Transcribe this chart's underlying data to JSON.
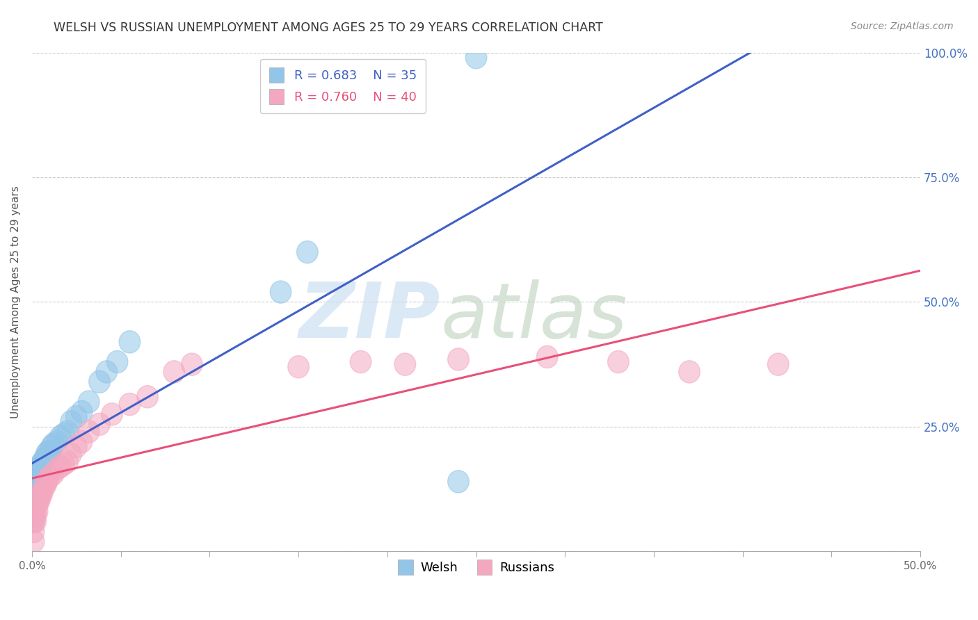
{
  "title": "WELSH VS RUSSIAN UNEMPLOYMENT AMONG AGES 25 TO 29 YEARS CORRELATION CHART",
  "source": "Source: ZipAtlas.com",
  "ylabel": "Unemployment Among Ages 25 to 29 years",
  "xlim": [
    0,
    0.5
  ],
  "ylim": [
    0,
    1.0
  ],
  "xticks": [
    0.0,
    0.05,
    0.1,
    0.15,
    0.2,
    0.25,
    0.3,
    0.35,
    0.4,
    0.45,
    0.5
  ],
  "xticklabels_show": [
    "0.0%",
    "",
    "",
    "",
    "",
    "",
    "",
    "",
    "",
    "",
    "50.0%"
  ],
  "yticks": [
    0.0,
    0.25,
    0.5,
    0.75,
    1.0
  ],
  "yticklabels_right": [
    "",
    "25.0%",
    "50.0%",
    "75.0%",
    "100.0%"
  ],
  "welsh_R": 0.683,
  "welsh_N": 35,
  "russian_R": 0.76,
  "russian_N": 40,
  "welsh_color": "#92C5E8",
  "russian_color": "#F4A8C0",
  "welsh_line_color": "#4060C8",
  "russian_line_color": "#E8507A",
  "welsh_x": [
    0.001,
    0.001,
    0.002,
    0.002,
    0.002,
    0.003,
    0.003,
    0.003,
    0.004,
    0.004,
    0.005,
    0.005,
    0.006,
    0.007,
    0.008,
    0.009,
    0.01,
    0.011,
    0.012,
    0.014,
    0.016,
    0.018,
    0.02,
    0.022,
    0.025,
    0.028,
    0.032,
    0.038,
    0.042,
    0.048,
    0.055,
    0.14,
    0.155,
    0.24,
    0.25
  ],
  "welsh_y": [
    0.06,
    0.08,
    0.09,
    0.1,
    0.12,
    0.13,
    0.14,
    0.15,
    0.155,
    0.165,
    0.17,
    0.175,
    0.18,
    0.185,
    0.195,
    0.2,
    0.2,
    0.21,
    0.215,
    0.22,
    0.23,
    0.235,
    0.24,
    0.26,
    0.27,
    0.28,
    0.3,
    0.34,
    0.36,
    0.38,
    0.42,
    0.52,
    0.6,
    0.14,
    0.99
  ],
  "russian_x": [
    0.001,
    0.001,
    0.001,
    0.002,
    0.002,
    0.002,
    0.003,
    0.003,
    0.004,
    0.004,
    0.005,
    0.005,
    0.006,
    0.007,
    0.008,
    0.009,
    0.01,
    0.012,
    0.014,
    0.016,
    0.018,
    0.02,
    0.022,
    0.025,
    0.028,
    0.032,
    0.038,
    0.045,
    0.055,
    0.065,
    0.08,
    0.09,
    0.15,
    0.185,
    0.21,
    0.24,
    0.29,
    0.33,
    0.37,
    0.42
  ],
  "russian_y": [
    0.02,
    0.04,
    0.06,
    0.06,
    0.07,
    0.08,
    0.08,
    0.095,
    0.1,
    0.11,
    0.11,
    0.115,
    0.12,
    0.13,
    0.135,
    0.145,
    0.15,
    0.155,
    0.165,
    0.17,
    0.175,
    0.18,
    0.195,
    0.21,
    0.22,
    0.24,
    0.255,
    0.275,
    0.295,
    0.31,
    0.36,
    0.375,
    0.37,
    0.38,
    0.375,
    0.385,
    0.39,
    0.38,
    0.36,
    0.375
  ]
}
